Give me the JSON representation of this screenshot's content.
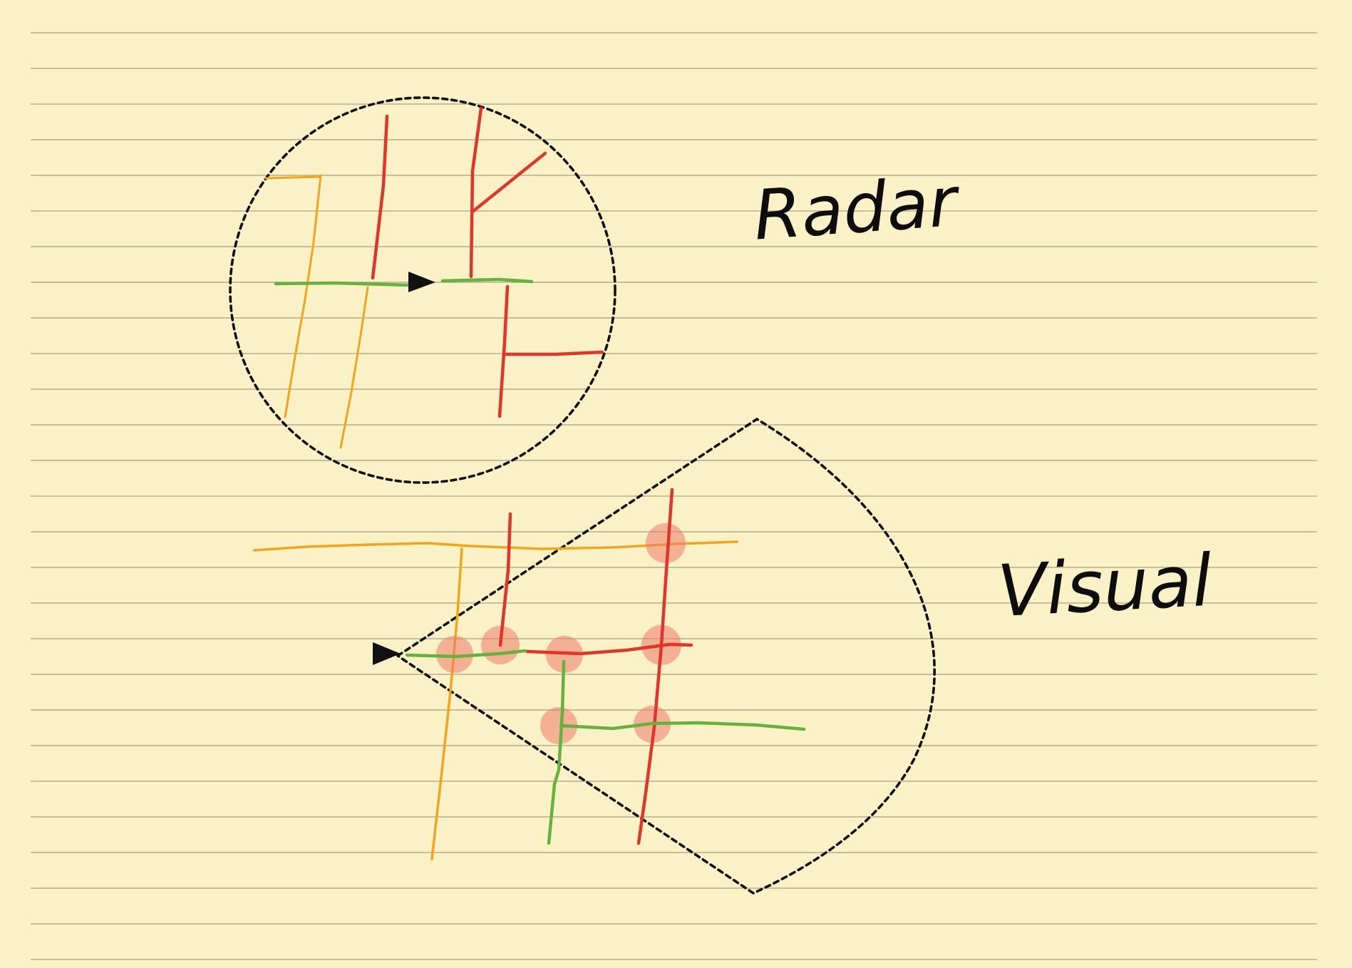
{
  "page": {
    "background": "#fbf1c6",
    "rule_color": "#b3ad92",
    "rule_count": 27
  },
  "colors": {
    "orange_road": "#f0a51d",
    "red_road": "#e0362a",
    "green_road": "#66b23e",
    "detection_spot": "#ef7a6a",
    "ink": "#111111"
  },
  "labels": {
    "radar": "Radar",
    "visual": "Visual"
  },
  "icons": {
    "vehicle_marker": "black-triangle-arrow"
  },
  "diagram": {
    "panels": [
      {
        "name": "radar",
        "sensor_shape": "circle",
        "boundary": "dashed"
      },
      {
        "name": "visual",
        "sensor_shape": "cone",
        "boundary": "dashed",
        "detection_spot_count": 7
      }
    ]
  }
}
